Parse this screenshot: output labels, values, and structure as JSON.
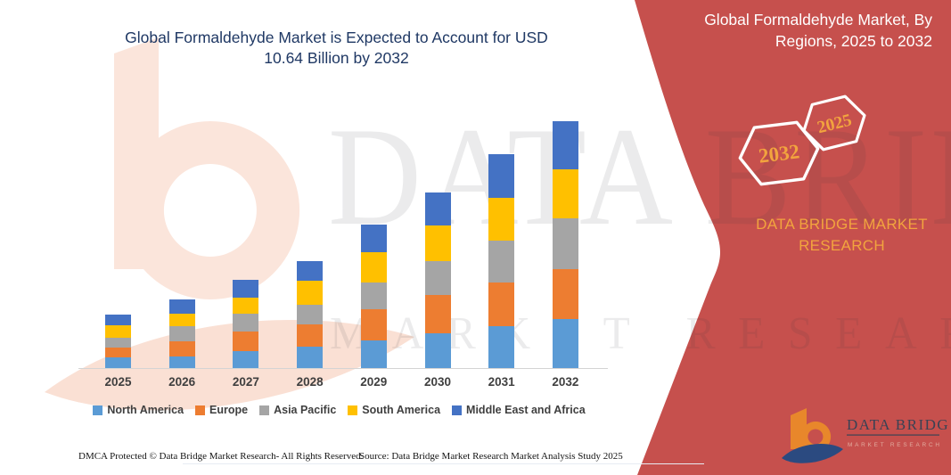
{
  "title": {
    "line1": "Global Formaldehyde Market is Expected to Account for USD",
    "line2": "10.64 Billion by 2032"
  },
  "banner": {
    "title_line1": "Global Formaldehyde Market, By",
    "title_line2": "Regions, 2025 to 2032",
    "badge_2032": "2032",
    "badge_2025": "2025",
    "brand_line1": "DATA BRIDGE MARKET",
    "brand_line2": "RESEARCH",
    "bg_color": "#C6504D",
    "accent_color": "#F2A43E",
    "text_color": "#FFFFFF"
  },
  "chart_data": {
    "type": "bar",
    "stacked": true,
    "title": "Global Formaldehyde Market is Expected to Account for USD 10.64 Billion by 2032",
    "unit": "USD Billion",
    "categories": [
      "2025",
      "2026",
      "2027",
      "2028",
      "2029",
      "2030",
      "2031",
      "2032"
    ],
    "series": [
      {
        "name": "North America",
        "color": "#5B9BD5",
        "values": [
          0.45,
          0.51,
          0.73,
          0.93,
          1.18,
          1.5,
          1.8,
          2.12
        ]
      },
      {
        "name": "Europe",
        "color": "#ED7D31",
        "values": [
          0.41,
          0.67,
          0.84,
          0.97,
          1.35,
          1.64,
          1.87,
          2.15
        ]
      },
      {
        "name": "Asia Pacific",
        "color": "#A5A5A5",
        "values": [
          0.41,
          0.67,
          0.77,
          0.84,
          1.16,
          1.48,
          1.8,
          2.19
        ]
      },
      {
        "name": "South America",
        "color": "#FFC000",
        "values": [
          0.55,
          0.55,
          0.71,
          1.03,
          1.29,
          1.54,
          1.83,
          2.1
        ]
      },
      {
        "name": "Middle East and Africa",
        "color": "#4472C4",
        "values": [
          0.45,
          0.6,
          0.77,
          0.84,
          1.18,
          1.44,
          1.87,
          2.08
        ]
      }
    ],
    "totals_by_year": [
      2.27,
      3.0,
      3.82,
      4.61,
      6.16,
      7.6,
      9.17,
      10.64
    ],
    "ylim": [
      0,
      10.64
    ],
    "grid": false,
    "axis_color": "#d4d4d4",
    "legend_position": "bottom"
  },
  "watermark": {
    "line1": "DATA BRIDGE",
    "line2": "MARKET RESEARCH"
  },
  "logo": {
    "title": "DATA BRIDGE",
    "subtitle": "MARKET RESEARCH"
  },
  "footer": {
    "left": "DMCA Protected © Data Bridge Market Research-  All Rights Reserved.",
    "right": "Source: Data Bridge Market Research  Market Analysis Study 2025"
  },
  "colors": {
    "title_navy": "#1F3864",
    "legend_text": "#3f3f3f",
    "logo_orange": "#E8872B",
    "logo_navy": "#2B4A80"
  }
}
